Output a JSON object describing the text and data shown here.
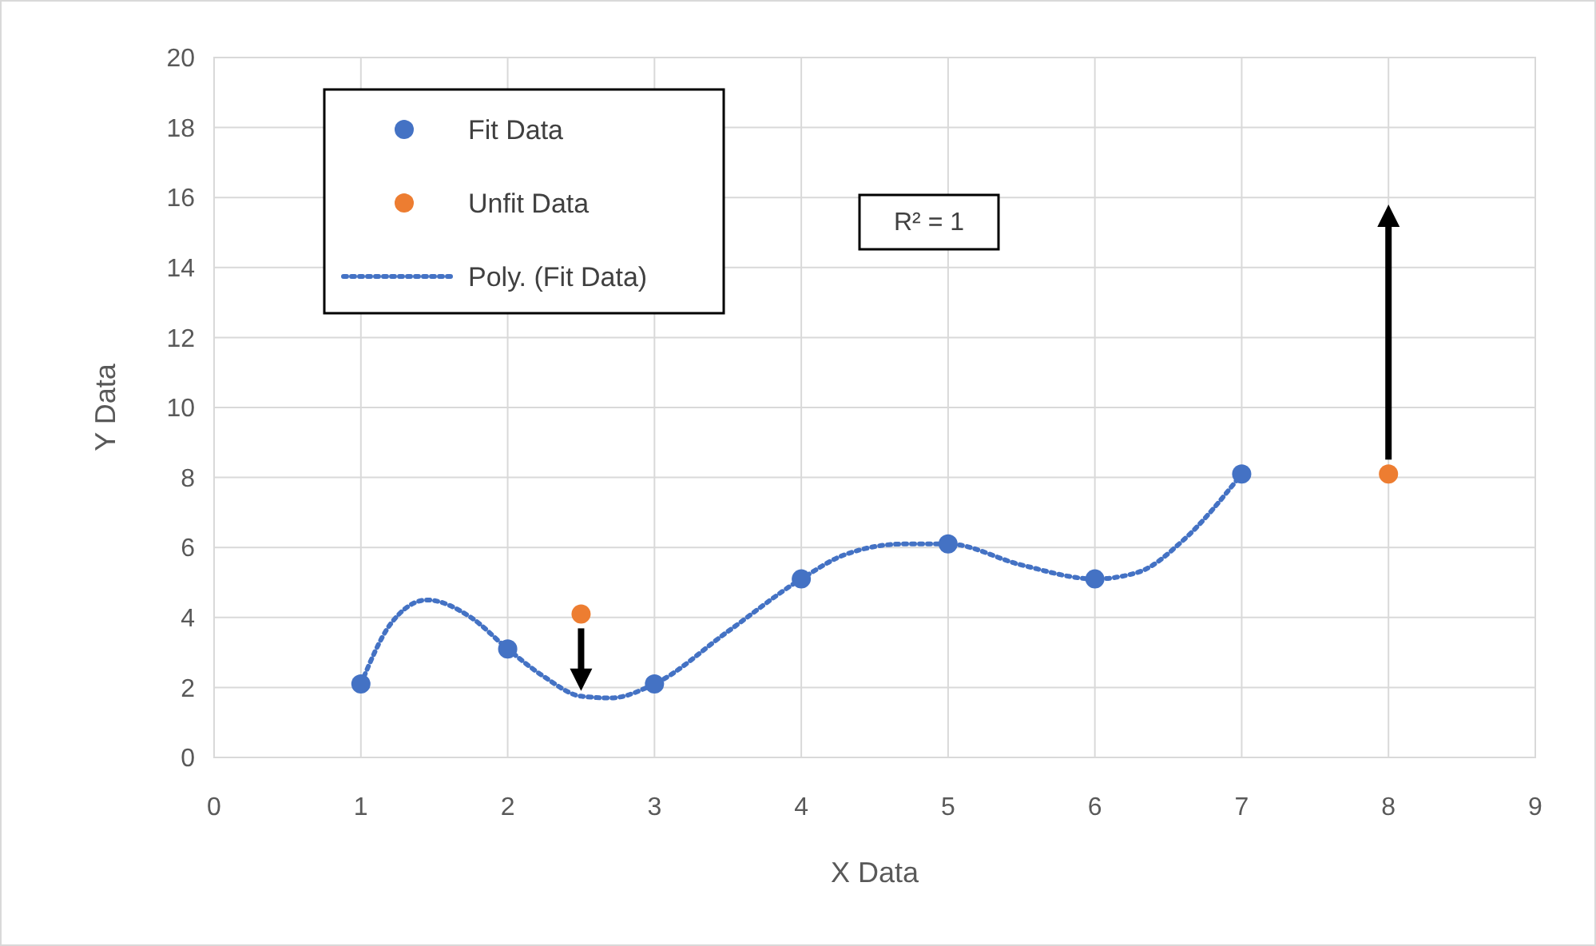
{
  "chart_data": {
    "type": "scatter",
    "xlabel": "X Data",
    "ylabel": "Y Data",
    "xlim": [
      0,
      9
    ],
    "xticks": [
      0,
      1,
      2,
      3,
      4,
      5,
      6,
      7,
      8,
      9
    ],
    "ylim": [
      0,
      20
    ],
    "yticks": [
      0,
      2,
      4,
      6,
      8,
      10,
      12,
      14,
      16,
      18,
      20
    ],
    "grid": true,
    "legend": "top left",
    "marker": "circle",
    "annotations": [
      "R² = 1"
    ],
    "series": [
      {
        "name": "Fit Data",
        "color": "#4472c4",
        "x": [
          1,
          2,
          3,
          4,
          5,
          6,
          7
        ],
        "values": [
          2.1,
          3.1,
          2.1,
          5.1,
          6.1,
          5.1,
          8.1
        ]
      },
      {
        "name": "Unfit Data",
        "color": "#ed7d31",
        "x": [
          2.5,
          8
        ],
        "values": [
          4.1,
          8.1
        ]
      },
      {
        "name": "Poly. (Fit Data)",
        "type": "line",
        "marker": "none",
        "line_style": "dotted",
        "color": "#4472c4",
        "x": [
          1,
          1.2,
          1.45,
          1.75,
          2,
          2.25,
          2.5,
          2.7,
          3,
          3.5,
          4,
          4.3,
          4.7,
          5,
          5.5,
          6,
          6.3,
          6.6,
          7
        ],
        "values": [
          2.1,
          3.8,
          4.5,
          4.0,
          3.1,
          2.3,
          1.75,
          1.7,
          2.1,
          3.6,
          5.1,
          5.8,
          6.1,
          6.1,
          5.5,
          5.1,
          5.3,
          6.2,
          8.1
        ]
      }
    ]
  }
}
